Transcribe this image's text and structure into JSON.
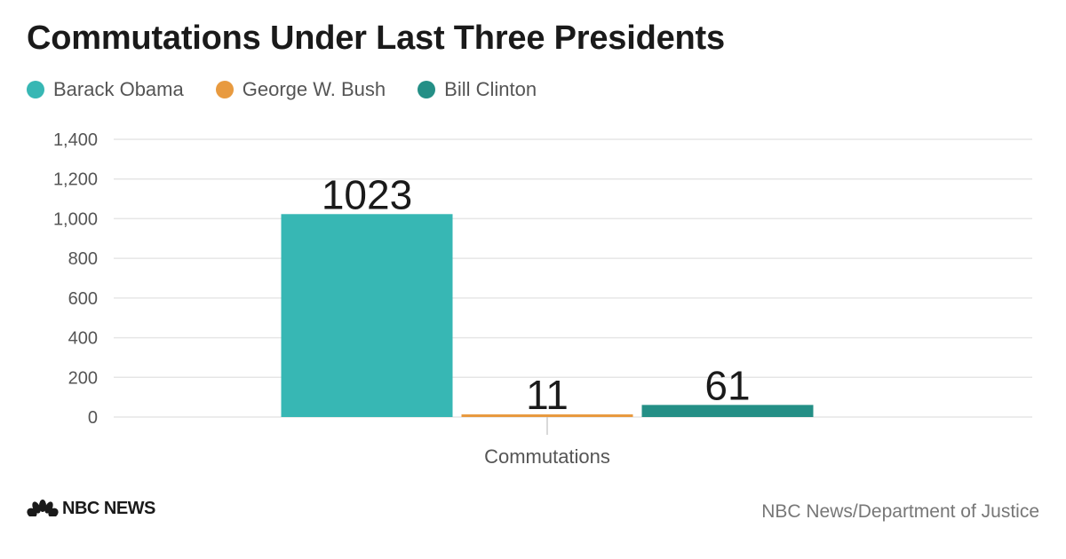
{
  "chart_data": {
    "type": "bar",
    "title": "Commutations Under Last Three Presidents",
    "categories": [
      "Commutations"
    ],
    "series": [
      {
        "name": "Barack Obama",
        "values": [
          1023
        ],
        "color": "#37b7b4"
      },
      {
        "name": "George W. Bush",
        "values": [
          11
        ],
        "color": "#e89a3f"
      },
      {
        "name": "Bill Clinton",
        "values": [
          61
        ],
        "color": "#248f86"
      }
    ],
    "xlabel": "",
    "ylabel": "",
    "ylim": [
      0,
      1400
    ],
    "yticks": [
      "0",
      "200",
      "400",
      "600",
      "800",
      "1,000",
      "1,200",
      "1,400"
    ],
    "ytick_values": [
      0,
      200,
      400,
      600,
      800,
      1000,
      1200,
      1400
    ],
    "grid": true,
    "legend": "top-left"
  },
  "footer": {
    "logo_text": "NBC NEWS",
    "source": "NBC News/Department of Justice"
  }
}
